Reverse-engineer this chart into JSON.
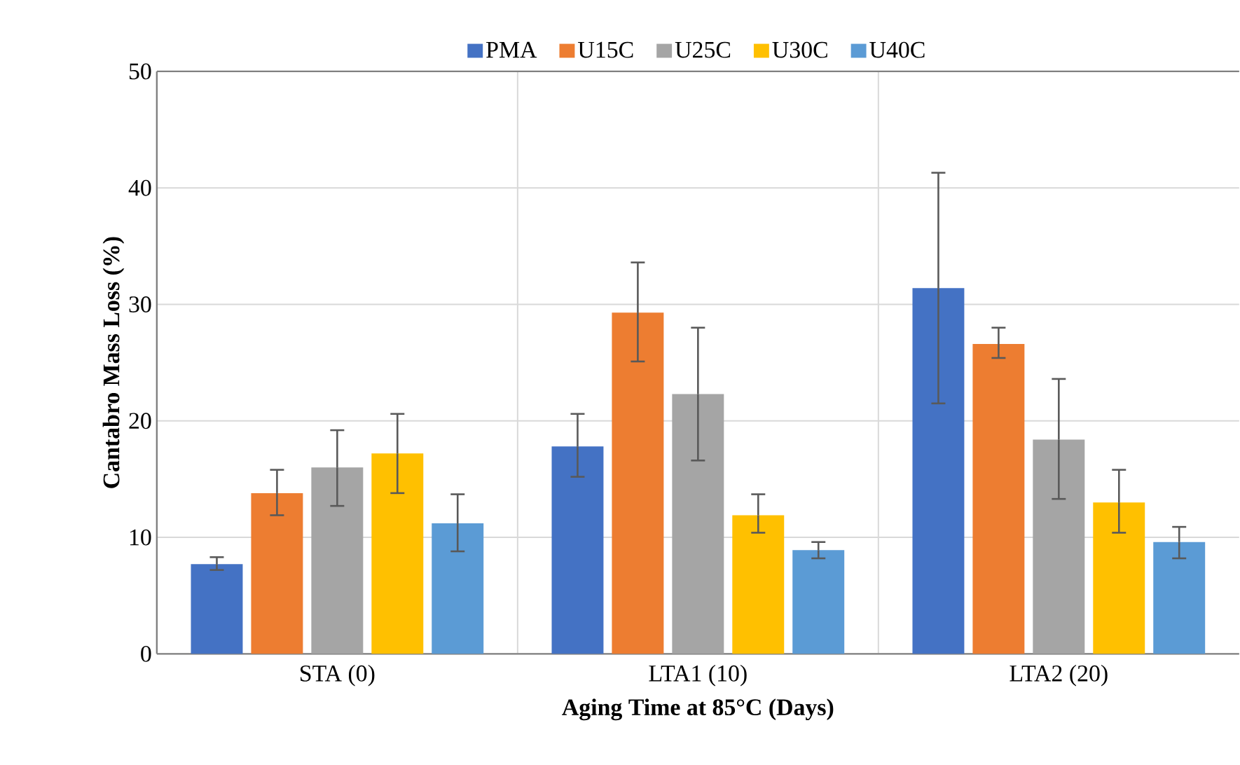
{
  "chart_data": {
    "type": "bar",
    "xlabel": "Aging Time at 85°C (Days)",
    "ylabel": "Cantabro Mass Loss (%)",
    "categories": [
      "STA (0)",
      "LTA1 (10)",
      "LTA2 (20)"
    ],
    "series": [
      {
        "name": "PMA",
        "color": "#4472c4",
        "values": [
          7.7,
          17.8,
          31.4
        ],
        "errors": [
          [
            7.2,
            8.3
          ],
          [
            15.2,
            20.6
          ],
          [
            21.5,
            41.3
          ]
        ]
      },
      {
        "name": "U15C",
        "color": "#ed7d31",
        "values": [
          13.8,
          29.3,
          26.6
        ],
        "errors": [
          [
            11.9,
            15.8
          ],
          [
            25.1,
            33.6
          ],
          [
            25.4,
            28.0
          ]
        ]
      },
      {
        "name": "U25C",
        "color": "#a5a5a5",
        "values": [
          16.0,
          22.3,
          18.4
        ],
        "errors": [
          [
            12.7,
            19.2
          ],
          [
            16.6,
            28.0
          ],
          [
            13.3,
            23.6
          ]
        ]
      },
      {
        "name": "U30C",
        "color": "#ffc000",
        "values": [
          17.2,
          11.9,
          13.0
        ],
        "errors": [
          [
            13.8,
            20.6
          ],
          [
            10.4,
            13.7
          ],
          [
            10.4,
            15.8
          ]
        ]
      },
      {
        "name": "U40C",
        "color": "#5b9bd5",
        "values": [
          11.2,
          8.9,
          9.6
        ],
        "errors": [
          [
            8.8,
            13.7
          ],
          [
            8.2,
            9.6
          ],
          [
            8.2,
            10.9
          ]
        ]
      }
    ],
    "ylim": [
      0,
      50
    ],
    "yticks": [
      0,
      10,
      20,
      30,
      40,
      50
    ],
    "grid": true,
    "legend": "top"
  }
}
